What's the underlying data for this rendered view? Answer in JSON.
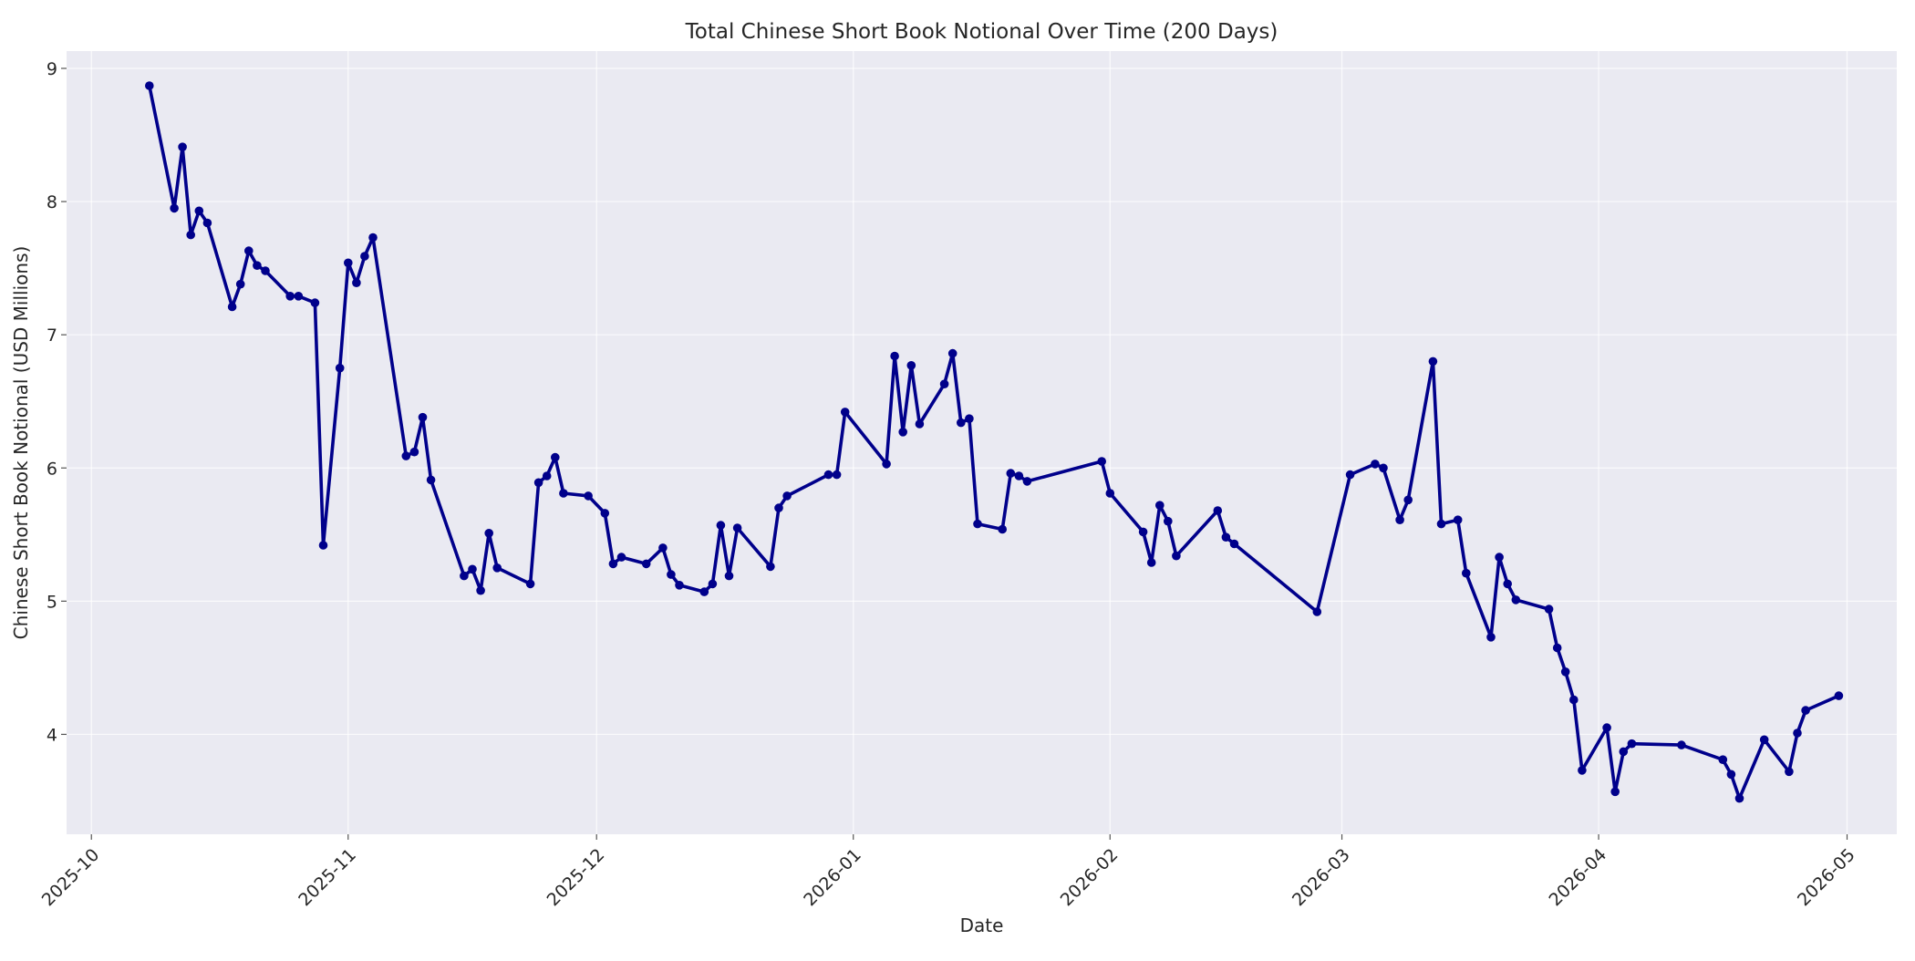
{
  "chart_data": {
    "type": "line",
    "title": "Total Chinese Short Book Notional Over Time (200 Days)",
    "xlabel": "Date",
    "ylabel": "Chinese Short Book Notional (USD Millions)",
    "xlim": [
      "2025-09-28",
      "2026-05-07"
    ],
    "ylim": [
      3.25,
      9.13
    ],
    "grid": true,
    "x_ticks": [
      "2025-10-01",
      "2025-11-01",
      "2025-12-01",
      "2026-01-01",
      "2026-02-01",
      "2026-03-01",
      "2026-04-01",
      "2026-05-01"
    ],
    "x_tick_labels": [
      "2025-10",
      "2025-11",
      "2025-12",
      "2026-01",
      "2026-02",
      "2026-03",
      "2026-04",
      "2026-05"
    ],
    "y_ticks": [
      4,
      5,
      6,
      7,
      8,
      9
    ],
    "y_tick_labels": [
      "4",
      "5",
      "6",
      "7",
      "8",
      "9"
    ],
    "colors": {
      "series": "#00008b",
      "plot_background": "#eaeaf2",
      "grid": "#ffffff"
    },
    "series": [
      {
        "marker": "circle",
        "x": [
          "2025-10-08",
          "2025-10-11",
          "2025-10-12",
          "2025-10-13",
          "2025-10-14",
          "2025-10-15",
          "2025-10-18",
          "2025-10-19",
          "2025-10-20",
          "2025-10-21",
          "2025-10-22",
          "2025-10-25",
          "2025-10-26",
          "2025-10-28",
          "2025-10-29",
          "2025-10-31",
          "2025-11-01",
          "2025-11-02",
          "2025-11-03",
          "2025-11-04",
          "2025-11-08",
          "2025-11-09",
          "2025-11-10",
          "2025-11-11",
          "2025-11-15",
          "2025-11-16",
          "2025-11-17",
          "2025-11-18",
          "2025-11-19",
          "2025-11-23",
          "2025-11-24",
          "2025-11-25",
          "2025-11-26",
          "2025-11-27",
          "2025-11-30",
          "2025-12-02",
          "2025-12-03",
          "2025-12-04",
          "2025-12-07",
          "2025-12-09",
          "2025-12-10",
          "2025-12-11",
          "2025-12-14",
          "2025-12-15",
          "2025-12-16",
          "2025-12-17",
          "2025-12-18",
          "2025-12-22",
          "2025-12-23",
          "2025-12-24",
          "2025-12-29",
          "2025-12-30",
          "2025-12-31",
          "2026-01-05",
          "2026-01-06",
          "2026-01-07",
          "2026-01-08",
          "2026-01-09",
          "2026-01-12",
          "2026-01-13",
          "2026-01-14",
          "2026-01-15",
          "2026-01-16",
          "2026-01-19",
          "2026-01-20",
          "2026-01-21",
          "2026-01-22",
          "2026-01-31",
          "2026-02-01",
          "2026-02-05",
          "2026-02-06",
          "2026-02-07",
          "2026-02-08",
          "2026-02-09",
          "2026-02-14",
          "2026-02-15",
          "2026-02-16",
          "2026-02-26",
          "2026-03-02",
          "2026-03-05",
          "2026-03-06",
          "2026-03-08",
          "2026-03-09",
          "2026-03-12",
          "2026-03-13",
          "2026-03-15",
          "2026-03-16",
          "2026-03-19",
          "2026-03-20",
          "2026-03-21",
          "2026-03-22",
          "2026-03-26",
          "2026-03-27",
          "2026-03-28",
          "2026-03-29",
          "2026-03-30",
          "2026-04-02",
          "2026-04-03",
          "2026-04-04",
          "2026-04-05",
          "2026-04-11",
          "2026-04-16",
          "2026-04-17",
          "2026-04-18",
          "2026-04-21",
          "2026-04-24",
          "2026-04-25",
          "2026-04-26",
          "2026-04-30"
        ],
        "values": [
          8.87,
          7.95,
          8.41,
          7.75,
          7.93,
          7.84,
          7.21,
          7.38,
          7.63,
          7.52,
          7.48,
          7.29,
          7.29,
          7.24,
          5.42,
          6.75,
          7.54,
          7.39,
          7.59,
          7.73,
          6.09,
          6.12,
          6.38,
          5.91,
          5.19,
          5.24,
          5.08,
          5.51,
          5.25,
          5.13,
          5.89,
          5.94,
          6.08,
          5.81,
          5.79,
          5.66,
          5.28,
          5.33,
          5.28,
          5.4,
          5.2,
          5.12,
          5.07,
          5.13,
          5.57,
          5.19,
          5.55,
          5.26,
          5.7,
          5.79,
          5.95,
          5.95,
          6.42,
          6.03,
          6.84,
          6.27,
          6.77,
          6.33,
          6.63,
          6.86,
          6.34,
          6.37,
          5.58,
          5.54,
          5.96,
          5.94,
          5.9,
          6.05,
          5.81,
          5.52,
          5.29,
          5.72,
          5.6,
          5.34,
          5.68,
          5.48,
          5.43,
          4.92,
          5.95,
          6.03,
          6.0,
          5.61,
          5.76,
          6.8,
          5.58,
          5.61,
          5.21,
          4.73,
          5.33,
          5.13,
          5.01,
          4.94,
          4.65,
          4.47,
          4.26,
          3.73,
          4.05,
          3.57,
          3.87,
          3.93,
          3.92,
          3.81,
          3.7,
          3.52,
          3.96,
          3.72,
          4.01,
          4.18,
          4.29
        ]
      }
    ]
  }
}
